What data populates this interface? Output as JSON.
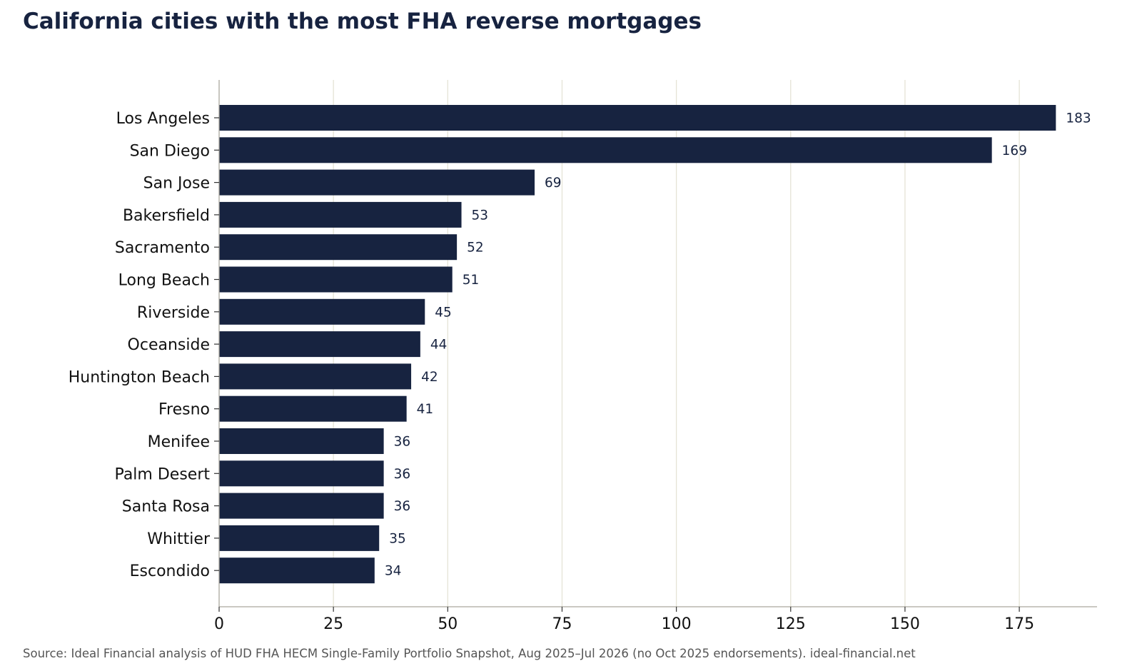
{
  "chart_data": {
    "type": "bar",
    "orientation": "horizontal",
    "title": "California cities with the most FHA reverse mortgages",
    "categories": [
      "Los Angeles",
      "San Diego",
      "San Jose",
      "Bakersfield",
      "Sacramento",
      "Long Beach",
      "Riverside",
      "Oceanside",
      "Huntington Beach",
      "Fresno",
      "Menifee",
      "Palm Desert",
      "Santa Rosa",
      "Whittier",
      "Escondido"
    ],
    "values": [
      183,
      169,
      69,
      53,
      52,
      51,
      45,
      44,
      42,
      41,
      36,
      36,
      36,
      35,
      34
    ],
    "xticks": [
      0,
      25,
      50,
      75,
      100,
      125,
      150,
      175
    ],
    "xlim": [
      0,
      192
    ],
    "grid": "vertical",
    "data_labels": true,
    "bar_color": "#172340",
    "source": "Source: Ideal Financial analysis of HUD FHA HECM Single-Family Portfolio Snapshot, Aug 2025–Jul 2026 (no Oct 2025 endorsements).  ideal-financial.net"
  }
}
